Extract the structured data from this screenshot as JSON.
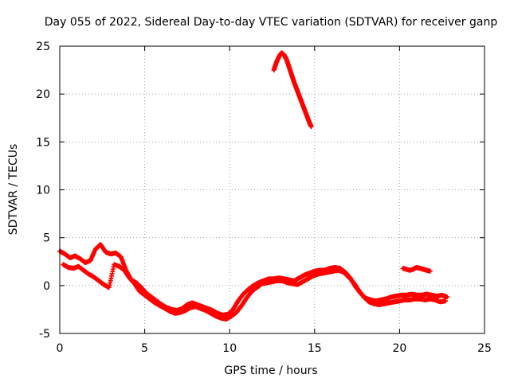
{
  "chart_data": {
    "type": "scatter",
    "title": "Day 055 of 2022, Sidereal Day-to-day VTEC variation (SDTVAR) for receiver ganp",
    "xlabel": "GPS time / hours",
    "ylabel": "SDTVAR / TECUs",
    "xlim": [
      0,
      25
    ],
    "ylim": [
      -5,
      25
    ],
    "xticks": [
      0,
      5,
      10,
      15,
      20,
      25
    ],
    "yticks": [
      -5,
      0,
      5,
      10,
      15,
      20,
      25
    ],
    "grid": true,
    "marker": "+",
    "series_color": "#ff0000",
    "series": [
      {
        "name": "main-trace-upper",
        "x": [
          0.0,
          0.3,
          0.6,
          0.9,
          1.2,
          1.5,
          1.8,
          2.1,
          2.4,
          2.7,
          3.0,
          3.3,
          3.6,
          3.9,
          4.2,
          4.5,
          4.8,
          5.1,
          5.4,
          5.7,
          6.0,
          6.3,
          6.6,
          6.9,
          7.2,
          7.5,
          7.8,
          8.1,
          8.4,
          8.7,
          9.0,
          9.3,
          9.6,
          9.9,
          10.2,
          10.5,
          10.8,
          11.1,
          11.4,
          11.7,
          12.0,
          12.3,
          12.6,
          12.9,
          13.2,
          13.5,
          13.8,
          14.1,
          14.4,
          14.7,
          15.0,
          15.3,
          15.6,
          15.9,
          16.2,
          16.5,
          16.8,
          17.1,
          17.4,
          17.7,
          18.0,
          18.3,
          18.6,
          18.9,
          19.2,
          19.5,
          19.8,
          20.1,
          20.4,
          20.7,
          21.0,
          21.3,
          21.6,
          21.9,
          22.2,
          22.5,
          22.8
        ],
        "y": [
          3.6,
          3.3,
          2.9,
          3.1,
          2.8,
          2.4,
          2.6,
          3.8,
          4.3,
          3.5,
          3.3,
          3.4,
          3.0,
          1.6,
          0.6,
          0.3,
          -0.2,
          -0.8,
          -1.2,
          -1.6,
          -2.0,
          -2.3,
          -2.5,
          -2.6,
          -2.4,
          -2.0,
          -1.8,
          -2.0,
          -2.2,
          -2.4,
          -2.6,
          -2.9,
          -3.1,
          -3.0,
          -2.5,
          -1.6,
          -0.9,
          -0.4,
          0.0,
          0.3,
          0.5,
          0.7,
          0.7,
          0.8,
          0.7,
          0.6,
          0.5,
          0.8,
          1.1,
          1.3,
          1.5,
          1.6,
          1.6,
          1.8,
          1.9,
          1.8,
          1.4,
          0.8,
          -0.1,
          -0.8,
          -1.3,
          -1.5,
          -1.6,
          -1.5,
          -1.4,
          -1.2,
          -1.1,
          -1.0,
          -1.0,
          -0.9,
          -1.0,
          -1.0,
          -0.9,
          -1.0,
          -1.1,
          -1.0,
          -1.2
        ]
      },
      {
        "name": "main-trace-lower",
        "x": [
          0.2,
          0.5,
          0.8,
          1.1,
          1.4,
          1.7,
          2.0,
          2.3,
          2.6,
          2.9,
          3.2,
          3.5,
          3.8,
          4.1,
          4.4,
          4.7,
          5.0,
          5.3,
          5.6,
          5.9,
          6.2,
          6.5,
          6.8,
          7.1,
          7.4,
          7.7,
          8.0,
          8.3,
          8.6,
          8.9,
          9.2,
          9.5,
          9.8,
          10.1,
          10.4,
          10.7,
          11.0,
          11.3,
          11.6,
          11.9,
          12.2,
          12.5,
          12.8,
          13.1,
          13.4,
          13.7,
          14.0,
          14.3,
          14.6,
          14.9,
          15.2,
          15.5,
          15.8,
          16.1,
          16.4,
          16.7,
          17.0,
          17.3,
          17.6,
          17.9,
          18.2,
          18.5,
          18.8,
          19.1,
          19.4,
          19.7,
          20.0,
          20.3,
          20.6,
          20.9,
          21.2,
          21.5,
          21.8,
          22.1,
          22.4,
          22.7
        ],
        "y": [
          2.2,
          1.9,
          1.8,
          2.0,
          1.6,
          1.2,
          0.9,
          0.5,
          0.1,
          -0.2,
          2.2,
          2.0,
          1.6,
          0.8,
          0.2,
          -0.6,
          -1.0,
          -1.4,
          -1.8,
          -2.1,
          -2.4,
          -2.7,
          -2.9,
          -2.8,
          -2.6,
          -2.3,
          -2.2,
          -2.4,
          -2.6,
          -2.9,
          -3.2,
          -3.4,
          -3.5,
          -3.2,
          -2.8,
          -2.1,
          -1.3,
          -0.6,
          -0.2,
          0.2,
          0.3,
          0.4,
          0.5,
          0.5,
          0.3,
          0.2,
          0.1,
          0.4,
          0.7,
          1.0,
          1.2,
          1.3,
          1.4,
          1.5,
          1.6,
          1.4,
          0.9,
          0.3,
          -0.5,
          -1.2,
          -1.7,
          -1.9,
          -2.0,
          -1.9,
          -1.8,
          -1.7,
          -1.6,
          -1.5,
          -1.5,
          -1.4,
          -1.4,
          -1.5,
          -1.4,
          -1.5,
          -1.7,
          -1.6
        ]
      },
      {
        "name": "high-arc",
        "x": [
          12.6,
          12.75,
          12.9,
          13.05,
          13.2,
          13.35,
          13.5,
          13.65,
          13.8,
          13.95,
          14.1,
          14.25,
          14.4,
          14.55,
          14.7,
          14.8
        ],
        "y": [
          22.5,
          23.3,
          23.9,
          24.3,
          24.1,
          23.6,
          22.8,
          22.0,
          21.2,
          20.5,
          19.8,
          19.1,
          18.4,
          17.7,
          17.0,
          16.6
        ]
      },
      {
        "name": "short-segment",
        "x": [
          20.2,
          20.4,
          20.6,
          20.8,
          21.0,
          21.2,
          21.4,
          21.6,
          21.8
        ],
        "y": [
          1.8,
          1.7,
          1.6,
          1.7,
          1.9,
          1.8,
          1.7,
          1.6,
          1.5
        ]
      }
    ]
  }
}
